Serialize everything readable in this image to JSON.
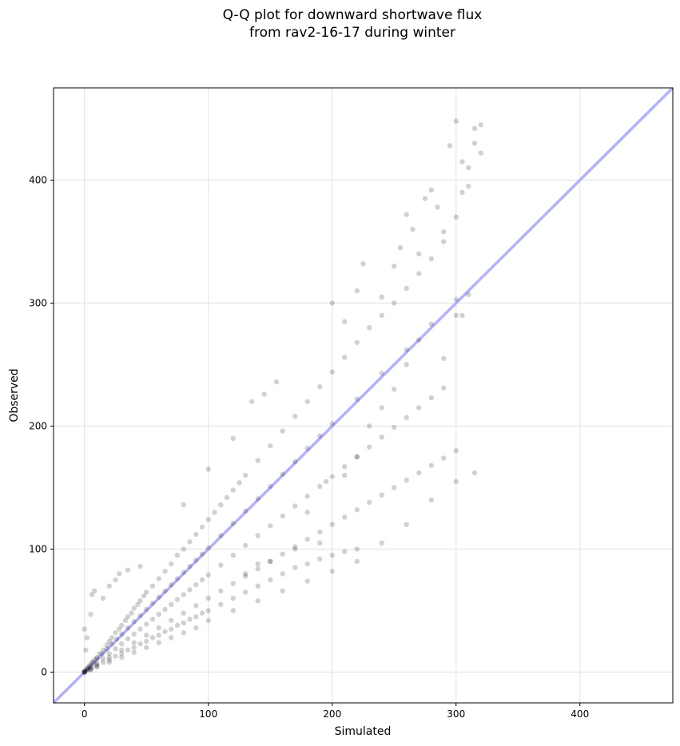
{
  "chart_data": {
    "type": "scatter",
    "title": "Q-Q plot for downward shortwave flux",
    "subtitle": "from rav2-16-17 during winter",
    "xlabel": "Simulated",
    "ylabel": "Observed",
    "xlim": [
      -25,
      475
    ],
    "ylim": [
      -25,
      475
    ],
    "xticks": [
      0,
      100,
      200,
      300,
      400
    ],
    "yticks": [
      0,
      100,
      200,
      300,
      400
    ],
    "grid": true,
    "reference_line": {
      "description": "1:1 line",
      "color": "#aaaaff"
    },
    "point_color": "#000000",
    "series": [
      {
        "points": [
          [
            0,
            0
          ],
          [
            1,
            1
          ],
          [
            2,
            2
          ],
          [
            3,
            4
          ],
          [
            5,
            6
          ],
          [
            6,
            8
          ],
          [
            8,
            10
          ],
          [
            10,
            12
          ],
          [
            12,
            15
          ],
          [
            15,
            18
          ],
          [
            18,
            22
          ],
          [
            20,
            25
          ],
          [
            22,
            28
          ],
          [
            25,
            32
          ],
          [
            28,
            35
          ],
          [
            30,
            38
          ],
          [
            33,
            42
          ],
          [
            35,
            45
          ],
          [
            38,
            48
          ],
          [
            40,
            52
          ],
          [
            43,
            55
          ],
          [
            45,
            58
          ],
          [
            48,
            62
          ],
          [
            50,
            65
          ],
          [
            55,
            70
          ],
          [
            60,
            76
          ],
          [
            65,
            82
          ],
          [
            70,
            88
          ],
          [
            75,
            95
          ],
          [
            80,
            100
          ],
          [
            85,
            106
          ],
          [
            90,
            112
          ],
          [
            95,
            118
          ],
          [
            100,
            124
          ],
          [
            105,
            130
          ],
          [
            110,
            136
          ],
          [
            115,
            142
          ],
          [
            120,
            148
          ],
          [
            125,
            154
          ],
          [
            130,
            160
          ],
          [
            140,
            172
          ],
          [
            150,
            184
          ],
          [
            160,
            196
          ],
          [
            170,
            208
          ],
          [
            180,
            220
          ],
          [
            190,
            232
          ],
          [
            200,
            244
          ],
          [
            210,
            256
          ],
          [
            220,
            268
          ],
          [
            230,
            280
          ],
          [
            240,
            290
          ],
          [
            250,
            300
          ],
          [
            260,
            312
          ],
          [
            270,
            324
          ],
          [
            280,
            336
          ],
          [
            290,
            350
          ],
          [
            300,
            370
          ],
          [
            305,
            390
          ],
          [
            310,
            410
          ],
          [
            315,
            430
          ],
          [
            320,
            445
          ],
          [
            0,
            1
          ],
          [
            2,
            3
          ],
          [
            4,
            5
          ],
          [
            7,
            8
          ],
          [
            10,
            11
          ],
          [
            14,
            15
          ],
          [
            18,
            19
          ],
          [
            22,
            23
          ],
          [
            26,
            27
          ],
          [
            30,
            31
          ],
          [
            35,
            36
          ],
          [
            40,
            41
          ],
          [
            45,
            46
          ],
          [
            50,
            51
          ],
          [
            55,
            56
          ],
          [
            60,
            61
          ],
          [
            65,
            66
          ],
          [
            70,
            71
          ],
          [
            75,
            76
          ],
          [
            80,
            81
          ],
          [
            85,
            86
          ],
          [
            90,
            91
          ],
          [
            95,
            96
          ],
          [
            100,
            101
          ],
          [
            110,
            111
          ],
          [
            120,
            121
          ],
          [
            130,
            131
          ],
          [
            140,
            141
          ],
          [
            150,
            151
          ],
          [
            160,
            161
          ],
          [
            170,
            171
          ],
          [
            180,
            182
          ],
          [
            190,
            192
          ],
          [
            200,
            202
          ],
          [
            220,
            222
          ],
          [
            240,
            243
          ],
          [
            260,
            262
          ],
          [
            280,
            283
          ],
          [
            300,
            303
          ],
          [
            310,
            307
          ],
          [
            0,
            0
          ],
          [
            3,
            2
          ],
          [
            6,
            4
          ],
          [
            10,
            7
          ],
          [
            15,
            11
          ],
          [
            20,
            15
          ],
          [
            25,
            19
          ],
          [
            30,
            23
          ],
          [
            35,
            27
          ],
          [
            40,
            31
          ],
          [
            45,
            35
          ],
          [
            50,
            39
          ],
          [
            55,
            43
          ],
          [
            60,
            47
          ],
          [
            65,
            51
          ],
          [
            70,
            55
          ],
          [
            75,
            59
          ],
          [
            80,
            63
          ],
          [
            85,
            67
          ],
          [
            90,
            71
          ],
          [
            95,
            75
          ],
          [
            100,
            79
          ],
          [
            110,
            87
          ],
          [
            120,
            95
          ],
          [
            130,
            103
          ],
          [
            140,
            111
          ],
          [
            150,
            119
          ],
          [
            160,
            127
          ],
          [
            170,
            135
          ],
          [
            180,
            143
          ],
          [
            190,
            151
          ],
          [
            200,
            159
          ],
          [
            210,
            167
          ],
          [
            220,
            175
          ],
          [
            230,
            183
          ],
          [
            240,
            191
          ],
          [
            250,
            199
          ],
          [
            260,
            207
          ],
          [
            270,
            215
          ],
          [
            280,
            223
          ],
          [
            290,
            231
          ],
          [
            0,
            0
          ],
          [
            5,
            2
          ],
          [
            10,
            5
          ],
          [
            15,
            8
          ],
          [
            20,
            10
          ],
          [
            25,
            13
          ],
          [
            30,
            15
          ],
          [
            35,
            18
          ],
          [
            40,
            20
          ],
          [
            45,
            23
          ],
          [
            50,
            25
          ],
          [
            55,
            28
          ],
          [
            60,
            30
          ],
          [
            65,
            33
          ],
          [
            70,
            35
          ],
          [
            75,
            38
          ],
          [
            80,
            40
          ],
          [
            85,
            43
          ],
          [
            90,
            45
          ],
          [
            95,
            48
          ],
          [
            100,
            50
          ],
          [
            110,
            55
          ],
          [
            120,
            60
          ],
          [
            130,
            65
          ],
          [
            140,
            70
          ],
          [
            150,
            75
          ],
          [
            160,
            80
          ],
          [
            170,
            85
          ],
          [
            180,
            88
          ],
          [
            190,
            92
          ],
          [
            200,
            95
          ],
          [
            210,
            98
          ],
          [
            220,
            100
          ],
          [
            0,
            0
          ],
          [
            5,
            3
          ],
          [
            10,
            6
          ],
          [
            20,
            12
          ],
          [
            30,
            18
          ],
          [
            40,
            24
          ],
          [
            50,
            30
          ],
          [
            60,
            36
          ],
          [
            70,
            42
          ],
          [
            80,
            48
          ],
          [
            90,
            54
          ],
          [
            100,
            60
          ],
          [
            110,
            66
          ],
          [
            120,
            72
          ],
          [
            130,
            78
          ],
          [
            140,
            84
          ],
          [
            150,
            90
          ],
          [
            160,
            96
          ],
          [
            170,
            102
          ],
          [
            180,
            108
          ],
          [
            190,
            114
          ],
          [
            200,
            120
          ],
          [
            210,
            126
          ],
          [
            220,
            132
          ],
          [
            230,
            138
          ],
          [
            240,
            144
          ],
          [
            250,
            150
          ],
          [
            260,
            156
          ],
          [
            270,
            162
          ],
          [
            280,
            168
          ],
          [
            290,
            174
          ],
          [
            300,
            180
          ],
          [
            0,
            0
          ],
          [
            5,
            2
          ],
          [
            10,
            4
          ],
          [
            20,
            8
          ],
          [
            30,
            12
          ],
          [
            40,
            16
          ],
          [
            50,
            20
          ],
          [
            60,
            24
          ],
          [
            70,
            28
          ],
          [
            80,
            32
          ],
          [
            90,
            36
          ],
          [
            100,
            42
          ],
          [
            120,
            50
          ],
          [
            140,
            58
          ],
          [
            160,
            66
          ],
          [
            180,
            74
          ],
          [
            200,
            82
          ],
          [
            220,
            90
          ],
          [
            240,
            105
          ],
          [
            260,
            120
          ],
          [
            280,
            140
          ],
          [
            300,
            155
          ],
          [
            315,
            162
          ],
          [
            0,
            35
          ],
          [
            1,
            18
          ],
          [
            2,
            28
          ],
          [
            5,
            47
          ],
          [
            6,
            63
          ],
          [
            8,
            66
          ],
          [
            15,
            60
          ],
          [
            20,
            70
          ],
          [
            25,
            75
          ],
          [
            28,
            80
          ],
          [
            35,
            83
          ],
          [
            45,
            86
          ],
          [
            80,
            136
          ],
          [
            100,
            165
          ],
          [
            120,
            190
          ],
          [
            135,
            220
          ],
          [
            145,
            226
          ],
          [
            155,
            236
          ],
          [
            200,
            300
          ],
          [
            210,
            285
          ],
          [
            220,
            310
          ],
          [
            225,
            332
          ],
          [
            240,
            305
          ],
          [
            250,
            330
          ],
          [
            255,
            345
          ],
          [
            260,
            372
          ],
          [
            265,
            360
          ],
          [
            270,
            340
          ],
          [
            275,
            385
          ],
          [
            280,
            392
          ],
          [
            285,
            378
          ],
          [
            290,
            358
          ],
          [
            295,
            428
          ],
          [
            300,
            448
          ],
          [
            305,
            415
          ],
          [
            310,
            395
          ],
          [
            315,
            442
          ],
          [
            320,
            422
          ],
          [
            300,
            290
          ],
          [
            305,
            290
          ],
          [
            290,
            255
          ],
          [
            270,
            270
          ],
          [
            260,
            250
          ],
          [
            250,
            230
          ],
          [
            240,
            215
          ],
          [
            230,
            200
          ],
          [
            220,
            175
          ],
          [
            210,
            160
          ],
          [
            195,
            155
          ],
          [
            180,
            130
          ],
          [
            190,
            105
          ],
          [
            170,
            100
          ],
          [
            150,
            90
          ],
          [
            140,
            88
          ],
          [
            130,
            80
          ]
        ]
      }
    ]
  }
}
